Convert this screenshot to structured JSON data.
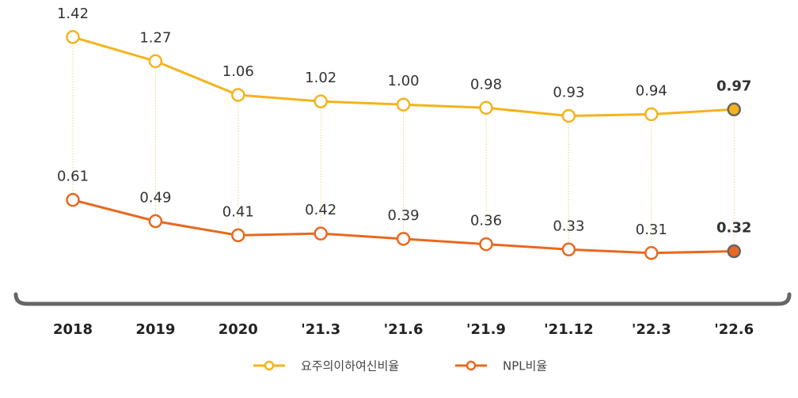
{
  "chart_data": {
    "type": "line",
    "categories": [
      "2018",
      "2019",
      "2020",
      "'21.3",
      "'21.6",
      "'21.9",
      "'21.12",
      "'22.3",
      "'22.6"
    ],
    "series": [
      {
        "name": "요주의이하여신비율",
        "color": "#f5b31b",
        "values": [
          1.42,
          1.27,
          1.06,
          1.02,
          1.0,
          0.98,
          0.93,
          0.94,
          0.97
        ],
        "value_labels": [
          "1.42",
          "1.27",
          "1.06",
          "1.02",
          "1.00",
          "0.98",
          "0.93",
          "0.94",
          "0.97"
        ]
      },
      {
        "name": "NPL비율",
        "color": "#e8691f",
        "axis": "y2",
        "values": [
          0.61,
          0.49,
          0.41,
          0.42,
          0.39,
          0.36,
          0.33,
          0.31,
          0.32
        ],
        "value_labels": [
          "0.61",
          "0.49",
          "0.41",
          "0.42",
          "0.39",
          "0.36",
          "0.33",
          "0.31",
          "0.32"
        ]
      }
    ],
    "ylim": [
      -0.12,
      1.65
    ],
    "y2lim": [
      0.13,
      1.74
    ]
  }
}
